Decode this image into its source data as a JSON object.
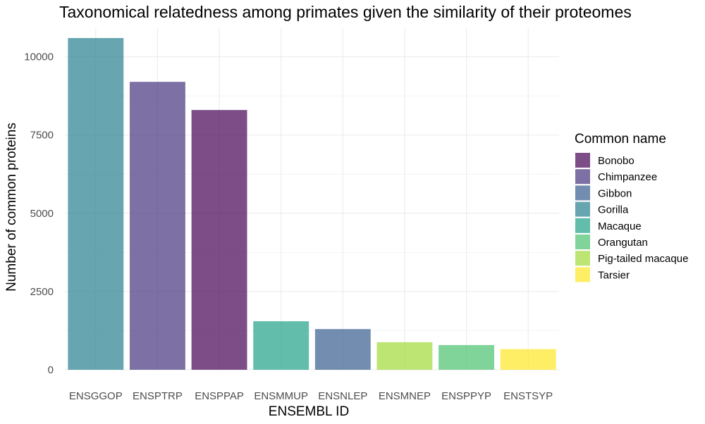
{
  "chart_data": {
    "type": "bar",
    "title": "Taxonomical relatedness among primates given the similarity of their proteomes",
    "xlabel": "ENSEMBL ID",
    "ylabel": "Number of common proteins",
    "categories": [
      "ENSGGOP",
      "ENSPTRP",
      "ENSPPAP",
      "ENSMMUP",
      "ENSNLEP",
      "ENSMNEP",
      "ENSPPYP",
      "ENSTSYP"
    ],
    "values": [
      10600,
      9200,
      8300,
      1550,
      1300,
      880,
      790,
      660
    ],
    "common_names": [
      "Gorilla",
      "Chimpanzee",
      "Bonobo",
      "Macaque",
      "Gibbon",
      "Pig-tailed macaque",
      "Orangutan",
      "Tarsier"
    ],
    "ylim": [
      0,
      10600
    ],
    "yticks": [
      0,
      2500,
      5000,
      7500,
      10000
    ],
    "grid": true,
    "legend": {
      "title": "Common name",
      "position": "right",
      "entries": [
        {
          "label": "Bonobo",
          "color": "#440154"
        },
        {
          "label": "Chimpanzee",
          "color": "#46337e"
        },
        {
          "label": "Gibbon",
          "color": "#365c8d"
        },
        {
          "label": "Gorilla",
          "color": "#277f8e"
        },
        {
          "label": "Macaque",
          "color": "#1fa187"
        },
        {
          "label": "Orangutan",
          "color": "#4ac16d"
        },
        {
          "label": "Pig-tailed macaque",
          "color": "#a0da39"
        },
        {
          "label": "Tarsier",
          "color": "#fde725"
        }
      ]
    },
    "bar_opacity": 0.7
  }
}
